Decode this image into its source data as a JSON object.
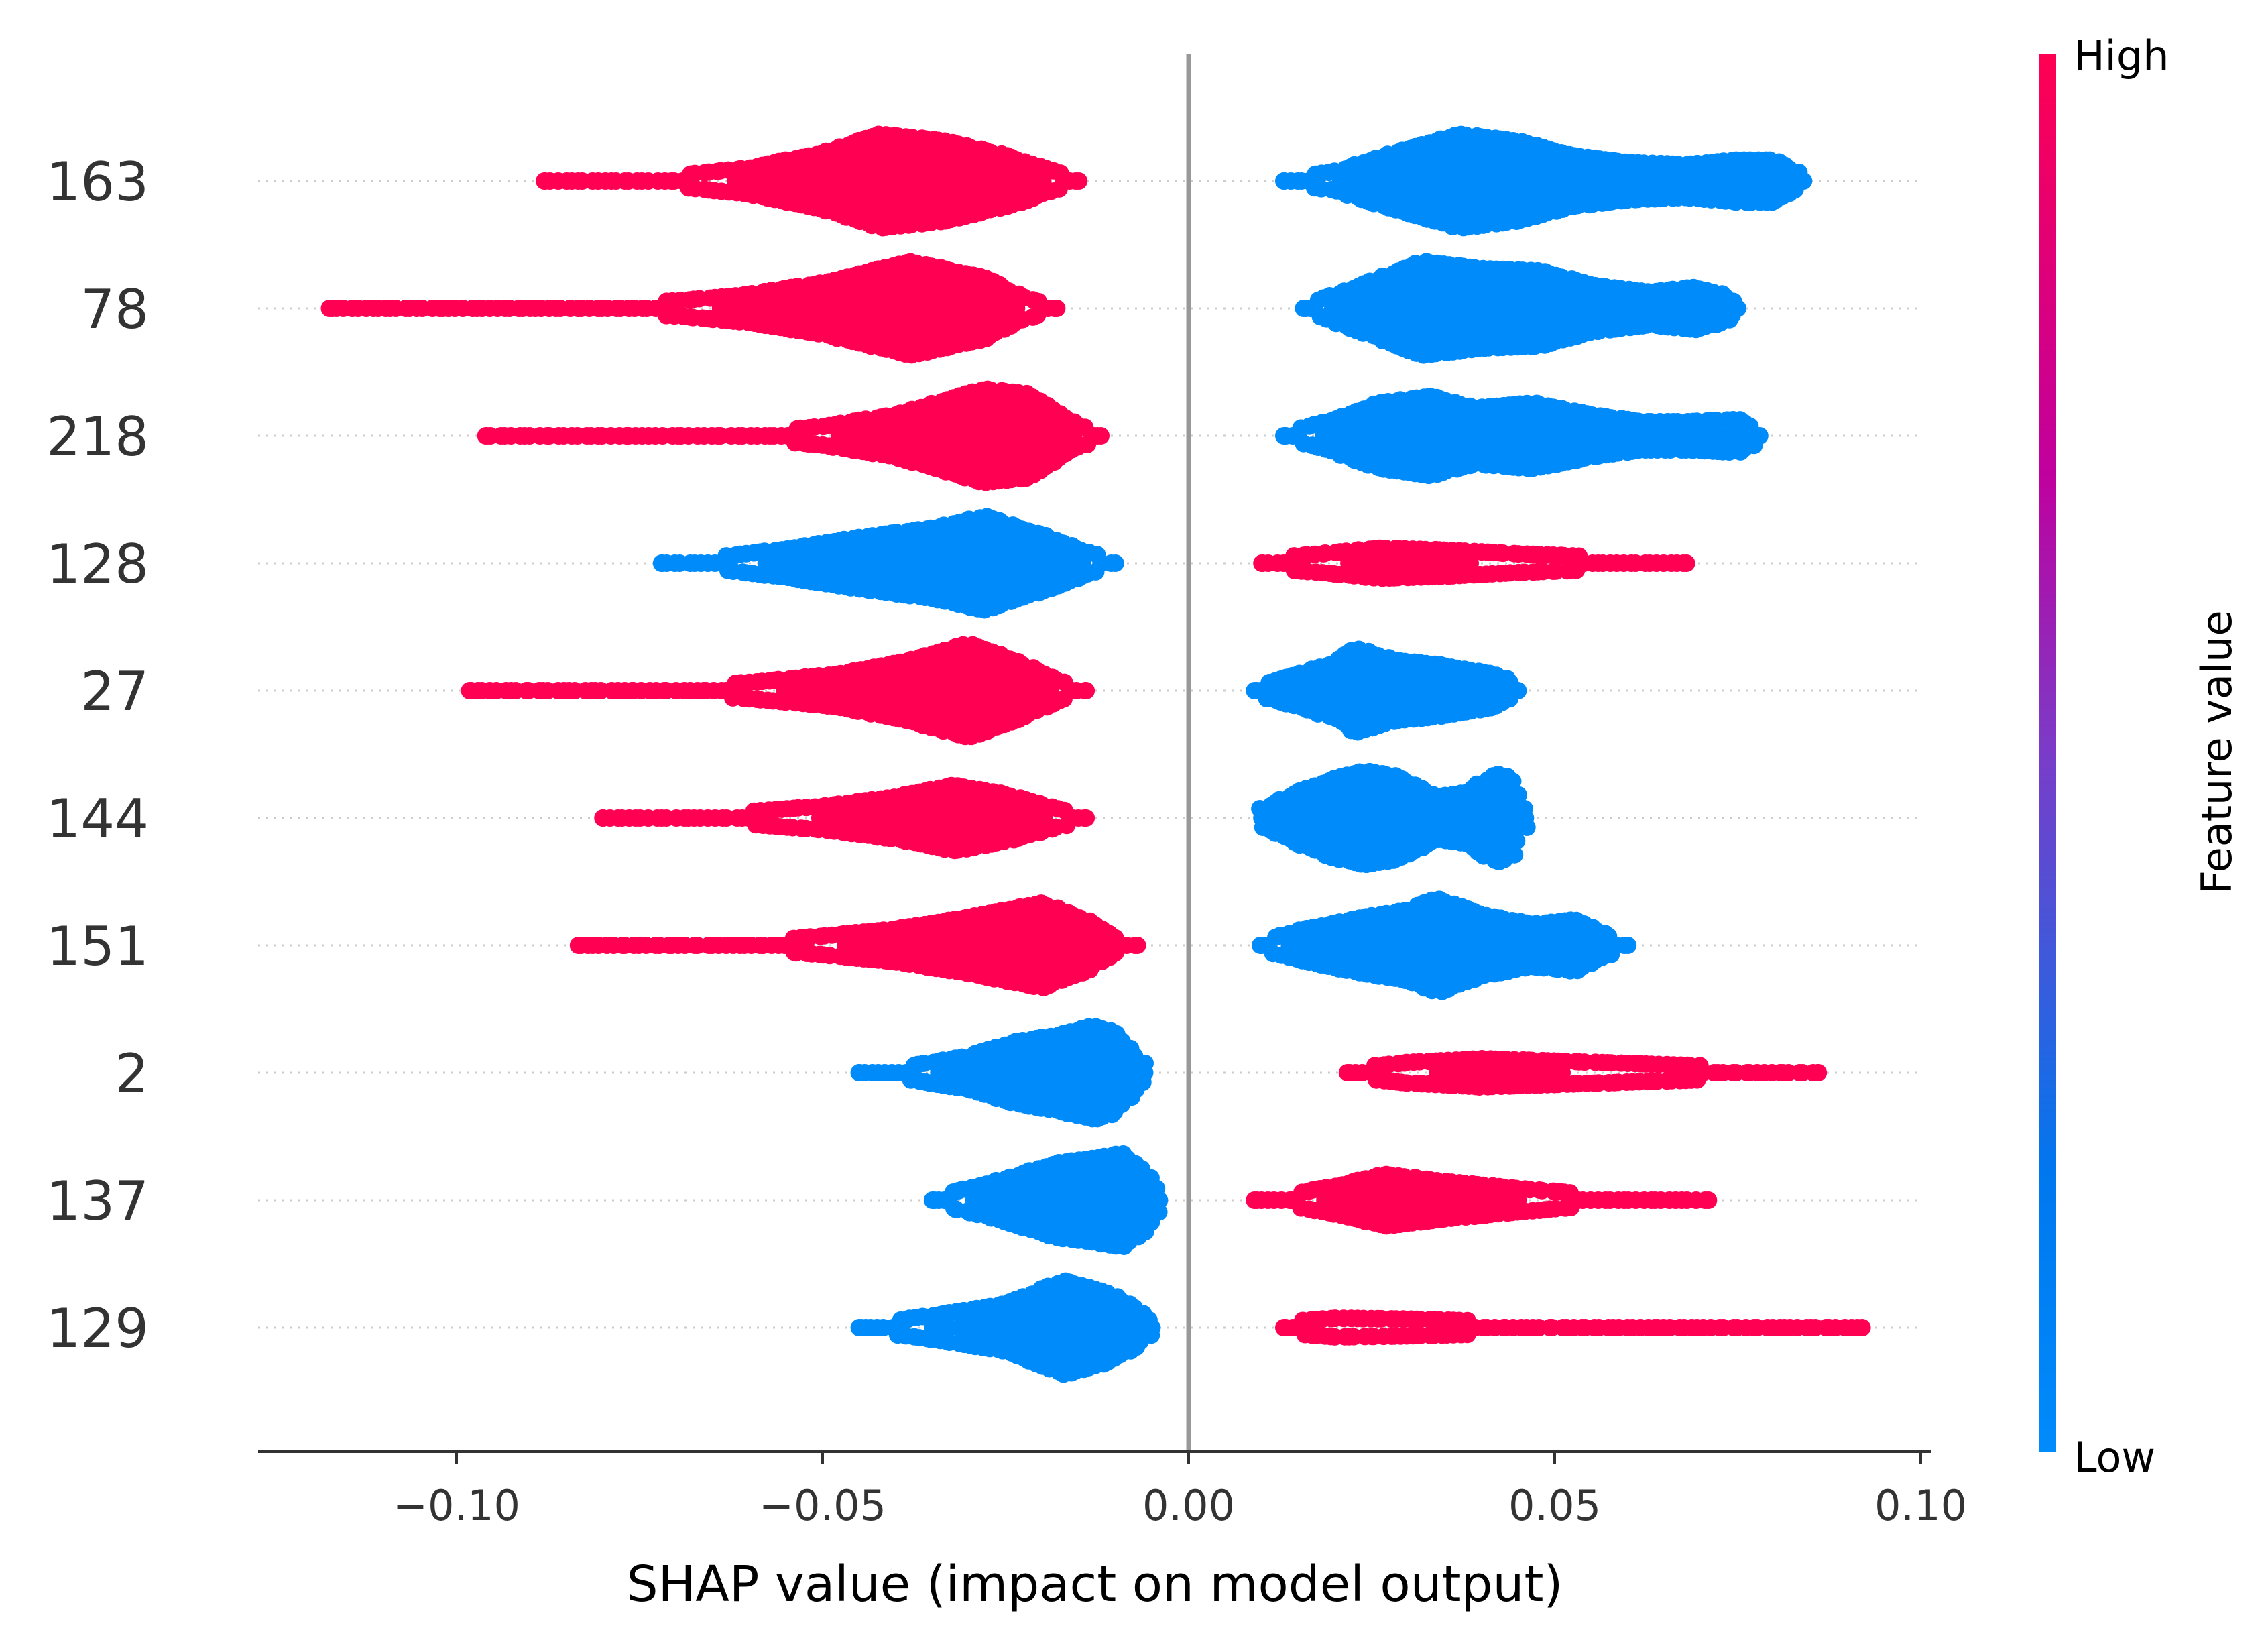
{
  "chart_data": {
    "type": "scatter",
    "subtype": "shap-beeswarm",
    "xlabel": "SHAP value (impact on model output)",
    "xlim": [
      -0.1275,
      0.1025
    ],
    "xticks": [
      -0.1,
      -0.05,
      0.0,
      0.05,
      0.1
    ],
    "xtick_labels": [
      "−0.10",
      "−0.05",
      "0.00",
      "0.05",
      "0.10"
    ],
    "zero_line": true,
    "row_gridlines": "dotted",
    "colors": {
      "high": "#ff0052",
      "low": "#008bfb",
      "mid": "#b900a0",
      "zero_line": "#999999",
      "grid": "#cccccc"
    },
    "colorbar": {
      "label": "Feature value",
      "high_label": "High",
      "low_label": "Low",
      "placement": "right"
    },
    "features": [
      {
        "name": "163",
        "left": {
          "color": "high",
          "min": -0.088,
          "max": -0.015,
          "peak": -0.042,
          "dist": [
            [
              -0.088,
              0.01
            ],
            [
              -0.081,
              0.04
            ],
            [
              -0.07,
              0.12
            ],
            [
              -0.06,
              0.28
            ],
            [
              -0.05,
              0.6
            ],
            [
              -0.042,
              1
            ],
            [
              -0.033,
              0.85
            ],
            [
              -0.024,
              0.5
            ],
            [
              -0.018,
              0.18
            ],
            [
              -0.015,
              0.04
            ]
          ]
        },
        "right": {
          "color": "low",
          "min": 0.013,
          "max": 0.084,
          "peak": 0.037,
          "dist": [
            [
              0.013,
              0.05
            ],
            [
              0.02,
              0.2
            ],
            [
              0.028,
              0.6
            ],
            [
              0.037,
              1
            ],
            [
              0.045,
              0.85
            ],
            [
              0.052,
              0.55
            ],
            [
              0.06,
              0.4
            ],
            [
              0.068,
              0.35
            ],
            [
              0.075,
              0.45
            ],
            [
              0.08,
              0.45
            ],
            [
              0.084,
              0.12
            ]
          ]
        }
      },
      {
        "name": "78",
        "left": {
          "color": "high",
          "min": -0.117,
          "max": -0.018,
          "peak": -0.038,
          "dist": [
            [
              -0.117,
              0.01
            ],
            [
              -0.103,
              0.01
            ],
            [
              -0.096,
              0.01
            ],
            [
              -0.089,
              0.03
            ],
            [
              -0.08,
              0.08
            ],
            [
              -0.07,
              0.16
            ],
            [
              -0.06,
              0.3
            ],
            [
              -0.05,
              0.55
            ],
            [
              -0.038,
              1
            ],
            [
              -0.028,
              0.65
            ],
            [
              -0.022,
              0.2
            ],
            [
              -0.018,
              0.04
            ]
          ]
        },
        "right": {
          "color": "low",
          "min": 0.016,
          "max": 0.075,
          "peak": 0.032,
          "dist": [
            [
              0.016,
              0.08
            ],
            [
              0.022,
              0.4
            ],
            [
              0.032,
              1
            ],
            [
              0.04,
              0.85
            ],
            [
              0.048,
              0.8
            ],
            [
              0.055,
              0.5
            ],
            [
              0.063,
              0.35
            ],
            [
              0.069,
              0.45
            ],
            [
              0.073,
              0.3
            ],
            [
              0.075,
              0.1
            ]
          ]
        }
      },
      {
        "name": "218",
        "left": {
          "color": "high",
          "min": -0.096,
          "max": -0.012,
          "peak": -0.028,
          "dist": [
            [
              -0.096,
              0.01
            ],
            [
              -0.08,
              0.01
            ],
            [
              -0.076,
              0.01
            ],
            [
              -0.06,
              0.06
            ],
            [
              -0.05,
              0.2
            ],
            [
              -0.04,
              0.45
            ],
            [
              -0.028,
              1
            ],
            [
              -0.022,
              0.9
            ],
            [
              -0.016,
              0.3
            ],
            [
              -0.012,
              0.05
            ]
          ]
        },
        "right": {
          "color": "low",
          "min": 0.013,
          "max": 0.078,
          "peak": 0.026,
          "dist": [
            [
              0.013,
              0.05
            ],
            [
              0.02,
              0.35
            ],
            [
              0.026,
              0.7
            ],
            [
              0.033,
              0.85
            ],
            [
              0.039,
              0.6
            ],
            [
              0.047,
              0.7
            ],
            [
              0.055,
              0.45
            ],
            [
              0.062,
              0.3
            ],
            [
              0.068,
              0.3
            ],
            [
              0.075,
              0.35
            ],
            [
              0.078,
              0.12
            ]
          ]
        }
      },
      {
        "name": "128",
        "left": {
          "color": "low",
          "min": -0.072,
          "max": -0.01,
          "peak": -0.028,
          "dist": [
            [
              -0.072,
              0.02
            ],
            [
              -0.065,
              0.12
            ],
            [
              -0.055,
              0.3
            ],
            [
              -0.045,
              0.55
            ],
            [
              -0.035,
              0.75
            ],
            [
              -0.028,
              1
            ],
            [
              -0.02,
              0.6
            ],
            [
              -0.015,
              0.3
            ],
            [
              -0.01,
              0.06
            ]
          ]
        },
        "right": {
          "color": "high",
          "min": 0.01,
          "max": 0.068,
          "peak": 0.026,
          "dist": [
            [
              0.01,
              0.1
            ],
            [
              0.018,
              0.2
            ],
            [
              0.026,
              0.32
            ],
            [
              0.035,
              0.28
            ],
            [
              0.045,
              0.2
            ],
            [
              0.055,
              0.14
            ],
            [
              0.062,
              0.1
            ],
            [
              0.068,
              0.05
            ]
          ]
        }
      },
      {
        "name": "27",
        "left": {
          "color": "high",
          "min": -0.098,
          "max": -0.014,
          "peak": -0.03,
          "dist": [
            [
              -0.098,
              0.01
            ],
            [
              -0.094,
              0.01
            ],
            [
              -0.085,
              0.04
            ],
            [
              -0.075,
              0.06
            ],
            [
              -0.067,
              0.1
            ],
            [
              -0.058,
              0.2
            ],
            [
              -0.048,
              0.35
            ],
            [
              -0.038,
              0.65
            ],
            [
              -0.03,
              1
            ],
            [
              -0.023,
              0.6
            ],
            [
              -0.018,
              0.22
            ],
            [
              -0.014,
              0.05
            ]
          ]
        },
        "right": {
          "color": "low",
          "min": 0.009,
          "max": 0.045,
          "peak": 0.023,
          "dist": [
            [
              0.009,
              0.1
            ],
            [
              0.014,
              0.3
            ],
            [
              0.02,
              0.6
            ],
            [
              0.023,
              0.9
            ],
            [
              0.028,
              0.65
            ],
            [
              0.034,
              0.55
            ],
            [
              0.038,
              0.45
            ],
            [
              0.042,
              0.35
            ],
            [
              0.045,
              0.1
            ]
          ]
        }
      },
      {
        "name": "144",
        "left": {
          "color": "high",
          "min": -0.08,
          "max": -0.014,
          "peak": -0.032,
          "dist": [
            [
              -0.08,
              0.01
            ],
            [
              -0.075,
              0.02
            ],
            [
              -0.07,
              0.06
            ],
            [
              -0.06,
              0.14
            ],
            [
              -0.05,
              0.25
            ],
            [
              -0.04,
              0.45
            ],
            [
              -0.032,
              0.7
            ],
            [
              -0.025,
              0.5
            ],
            [
              -0.018,
              0.2
            ],
            [
              -0.014,
              0.05
            ]
          ]
        },
        "right": {
          "color": "low",
          "min": 0.01,
          "max": 0.046,
          "peak": 0.024,
          "dist": [
            [
              0.01,
              0.2
            ],
            [
              0.015,
              0.55
            ],
            [
              0.02,
              0.85
            ],
            [
              0.024,
              1
            ],
            [
              0.028,
              0.9
            ],
            [
              0.034,
              0.45
            ],
            [
              0.038,
              0.55
            ],
            [
              0.042,
              0.95
            ],
            [
              0.044,
              0.85
            ],
            [
              0.046,
              0.2
            ]
          ]
        }
      },
      {
        "name": "151",
        "left": {
          "color": "high",
          "min": -0.083,
          "max": -0.007,
          "peak": -0.02,
          "dist": [
            [
              -0.083,
              0.01
            ],
            [
              -0.079,
              0.01
            ],
            [
              -0.071,
              0.01
            ],
            [
              -0.065,
              0.02
            ],
            [
              -0.06,
              0.08
            ],
            [
              -0.05,
              0.2
            ],
            [
              -0.04,
              0.35
            ],
            [
              -0.03,
              0.6
            ],
            [
              -0.02,
              0.9
            ],
            [
              -0.014,
              0.55
            ],
            [
              -0.01,
              0.15
            ],
            [
              -0.007,
              0.03
            ]
          ]
        },
        "right": {
          "color": "low",
          "min": 0.01,
          "max": 0.06,
          "peak": 0.034,
          "dist": [
            [
              0.01,
              0.1
            ],
            [
              0.016,
              0.35
            ],
            [
              0.024,
              0.6
            ],
            [
              0.03,
              0.75
            ],
            [
              0.034,
              1
            ],
            [
              0.04,
              0.65
            ],
            [
              0.047,
              0.45
            ],
            [
              0.053,
              0.55
            ],
            [
              0.056,
              0.3
            ],
            [
              0.06,
              0.06
            ]
          ]
        }
      },
      {
        "name": "2",
        "left": {
          "color": "low",
          "min": -0.045,
          "max": -0.006,
          "peak": -0.013,
          "dist": [
            [
              -0.045,
              0.04
            ],
            [
              -0.038,
              0.15
            ],
            [
              -0.03,
              0.35
            ],
            [
              -0.024,
              0.65
            ],
            [
              -0.018,
              0.8
            ],
            [
              -0.013,
              1
            ],
            [
              -0.01,
              0.85
            ],
            [
              -0.006,
              0.15
            ]
          ]
        },
        "right": {
          "color": "high",
          "min": 0.022,
          "max": 0.086,
          "peak": 0.04,
          "dist": [
            [
              0.022,
              0.1
            ],
            [
              0.03,
              0.22
            ],
            [
              0.04,
              0.3
            ],
            [
              0.05,
              0.25
            ],
            [
              0.06,
              0.2
            ],
            [
              0.07,
              0.15
            ],
            [
              0.078,
              0.08
            ],
            [
              0.083,
              0.02
            ],
            [
              0.086,
              0.01
            ]
          ]
        }
      },
      {
        "name": "137",
        "left": {
          "color": "low",
          "min": -0.035,
          "max": -0.004,
          "peak": -0.01,
          "dist": [
            [
              -0.035,
              0.08
            ],
            [
              -0.03,
              0.25
            ],
            [
              -0.024,
              0.5
            ],
            [
              -0.018,
              0.8
            ],
            [
              -0.013,
              0.9
            ],
            [
              -0.009,
              1
            ],
            [
              -0.006,
              0.65
            ],
            [
              -0.004,
              0.15
            ]
          ]
        },
        "right": {
          "color": "high",
          "min": 0.009,
          "max": 0.071,
          "peak": 0.027,
          "dist": [
            [
              0.009,
              0.02
            ],
            [
              0.013,
              0.1
            ],
            [
              0.02,
              0.3
            ],
            [
              0.027,
              0.55
            ],
            [
              0.035,
              0.4
            ],
            [
              0.045,
              0.25
            ],
            [
              0.055,
              0.12
            ],
            [
              0.062,
              0.06
            ],
            [
              0.068,
              0.02
            ],
            [
              0.071,
              0.01
            ]
          ]
        }
      },
      {
        "name": "129",
        "left": {
          "color": "low",
          "min": -0.045,
          "max": -0.005,
          "peak": -0.017,
          "dist": [
            [
              -0.045,
              0.03
            ],
            [
              -0.04,
              0.15
            ],
            [
              -0.033,
              0.3
            ],
            [
              -0.025,
              0.5
            ],
            [
              -0.017,
              1
            ],
            [
              -0.011,
              0.75
            ],
            [
              -0.007,
              0.4
            ],
            [
              -0.005,
              0.1
            ]
          ]
        },
        "right": {
          "color": "high",
          "min": 0.013,
          "max": 0.092,
          "peak": 0.02,
          "dist": [
            [
              0.013,
              0.12
            ],
            [
              0.02,
              0.2
            ],
            [
              0.03,
              0.18
            ],
            [
              0.04,
              0.14
            ],
            [
              0.05,
              0.08
            ],
            [
              0.058,
              0.07
            ],
            [
              0.065,
              0.07
            ],
            [
              0.072,
              0.06
            ],
            [
              0.08,
              0.04
            ],
            [
              0.086,
              0.02
            ],
            [
              0.092,
              0.01
            ]
          ]
        }
      }
    ]
  }
}
